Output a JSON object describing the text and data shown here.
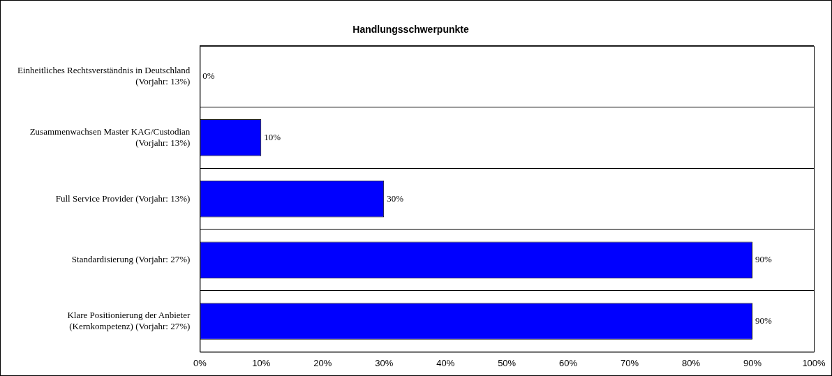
{
  "chart_data": {
    "type": "bar",
    "orientation": "horizontal",
    "title": "Handlungsschwerpunkte",
    "categories": [
      "Einheitliches Rechtsverständnis in Deutschland (Vorjahr: 13%)",
      "Zusammenwachsen Master KAG/Custodian (Vorjahr: 13%)",
      "Full Service Provider (Vorjahr: 13%)",
      "Standardisierung (Vorjahr: 27%)",
      "Klare Positionierung der Anbieter (Kernkompetenz) (Vorjahr: 27%)"
    ],
    "values": [
      0,
      10,
      30,
      90,
      90
    ],
    "value_labels": [
      "0%",
      "10%",
      "30%",
      "90%",
      "90%"
    ],
    "color": "#0000ff",
    "xlim": [
      0,
      100
    ],
    "xticks": [
      {
        "value": 0,
        "label": "0%"
      },
      {
        "value": 10,
        "label": "10%"
      },
      {
        "value": 20,
        "label": "20%"
      },
      {
        "value": 30,
        "label": "30%"
      },
      {
        "value": 40,
        "label": "40%"
      },
      {
        "value": 50,
        "label": "50%"
      },
      {
        "value": 60,
        "label": "60%"
      },
      {
        "value": 70,
        "label": "70%"
      },
      {
        "value": 80,
        "label": "80%"
      },
      {
        "value": 90,
        "label": "90%"
      },
      {
        "value": 100,
        "label": "100%"
      }
    ],
    "grid": "y",
    "legend": false
  }
}
